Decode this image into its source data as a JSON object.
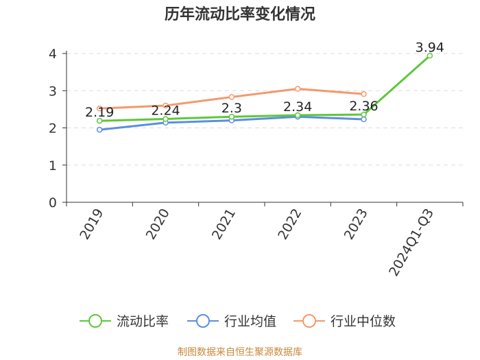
{
  "chart_data": {
    "type": "line",
    "title": "历年流动比率变化情况",
    "categories": [
      "2019",
      "2020",
      "2021",
      "2022",
      "2023",
      "2024Q1-Q3"
    ],
    "ylim": [
      0,
      4
    ],
    "yticks": [
      "0",
      "1",
      "2",
      "3",
      "4"
    ],
    "grid": true,
    "legend_position": "bottom",
    "series": [
      {
        "name": "流动比率",
        "color": "#5cc83a",
        "values": [
          2.19,
          2.24,
          2.3,
          2.34,
          2.36,
          3.94
        ],
        "labels": [
          "2.19",
          "2.24",
          "2.3",
          "2.34",
          "2.36",
          "3.94"
        ]
      },
      {
        "name": "行业均值",
        "color": "#5b8ee0",
        "values": [
          1.95,
          2.14,
          2.2,
          2.3,
          2.23,
          null
        ]
      },
      {
        "name": "行业中位数",
        "color": "#f4996a",
        "values": [
          2.52,
          2.6,
          2.83,
          3.05,
          2.91,
          null
        ]
      }
    ],
    "source": "制图数据来自恒生聚源数据库"
  }
}
